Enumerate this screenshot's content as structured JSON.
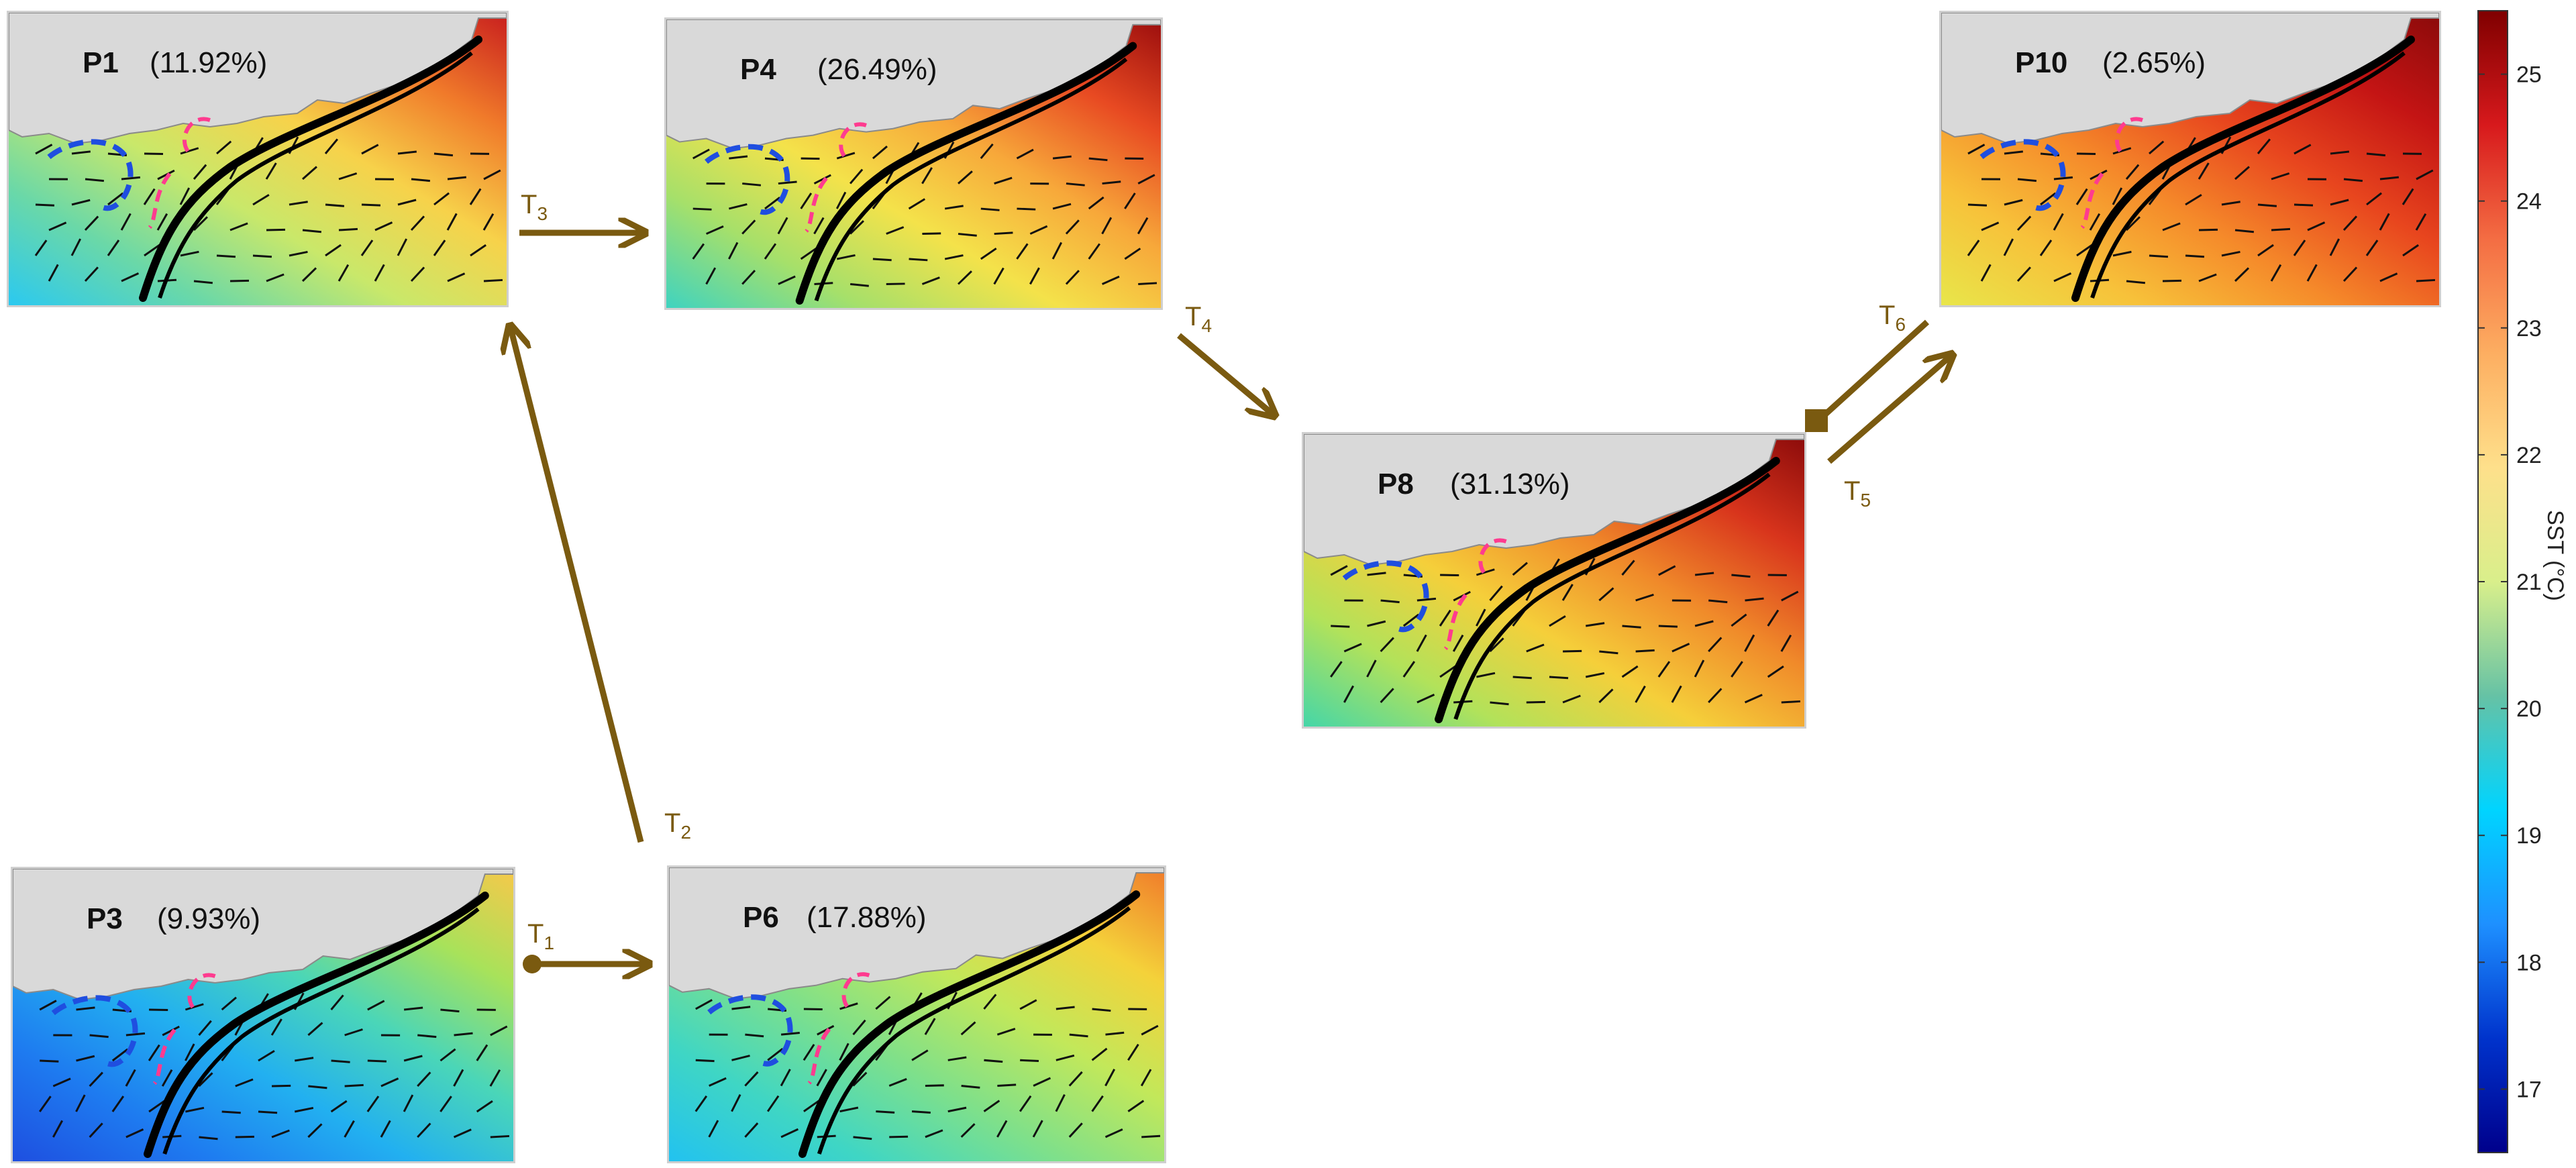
{
  "panels": [
    {
      "id": "P1",
      "label": "P1",
      "pct": "(11.92%)"
    },
    {
      "id": "P4",
      "label": "P4",
      "pct": "(26.49%)"
    },
    {
      "id": "P10",
      "label": "P10",
      "pct": "(2.65%)"
    },
    {
      "id": "P8",
      "label": "P8",
      "pct": "(31.13%)"
    },
    {
      "id": "P3",
      "label": "P3",
      "pct": "(9.93%)"
    },
    {
      "id": "P6",
      "label": "P6",
      "pct": "(17.88%)"
    }
  ],
  "transitions": [
    {
      "id": "T1",
      "main": "T",
      "sub": "1",
      "from": "P3",
      "to": "P6"
    },
    {
      "id": "T2",
      "main": "T",
      "sub": "2",
      "from": "P6",
      "to": "P1"
    },
    {
      "id": "T3",
      "main": "T",
      "sub": "3",
      "from": "P1",
      "to": "P4"
    },
    {
      "id": "T4",
      "main": "T",
      "sub": "4",
      "from": "P4",
      "to": "P8"
    },
    {
      "id": "T5",
      "main": "T",
      "sub": "5",
      "from": "P8",
      "to": "P10"
    },
    {
      "id": "T6",
      "main": "T",
      "sub": "6",
      "from": "P10",
      "to": "P8"
    }
  ],
  "colorbar": {
    "title": "SST (°C)",
    "ticks": [
      "25",
      "24",
      "23",
      "22",
      "21",
      "20",
      "19",
      "18",
      "17"
    ],
    "range": [
      16.5,
      25.5
    ],
    "colors": [
      "#7f0000",
      "#d7191c",
      "#f46d43",
      "#fdae61",
      "#fee08b",
      "#d9ef8b",
      "#66c2a5",
      "#00d4ff",
      "#1e90ff",
      "#0033cc",
      "#00008b"
    ]
  },
  "colors": {
    "arrow": "#7a5a10",
    "land": "#d9d9d9",
    "current": "#000000",
    "eddy_blue": "#1f4ee0",
    "eddy_pink": "#ff3b8f"
  }
}
